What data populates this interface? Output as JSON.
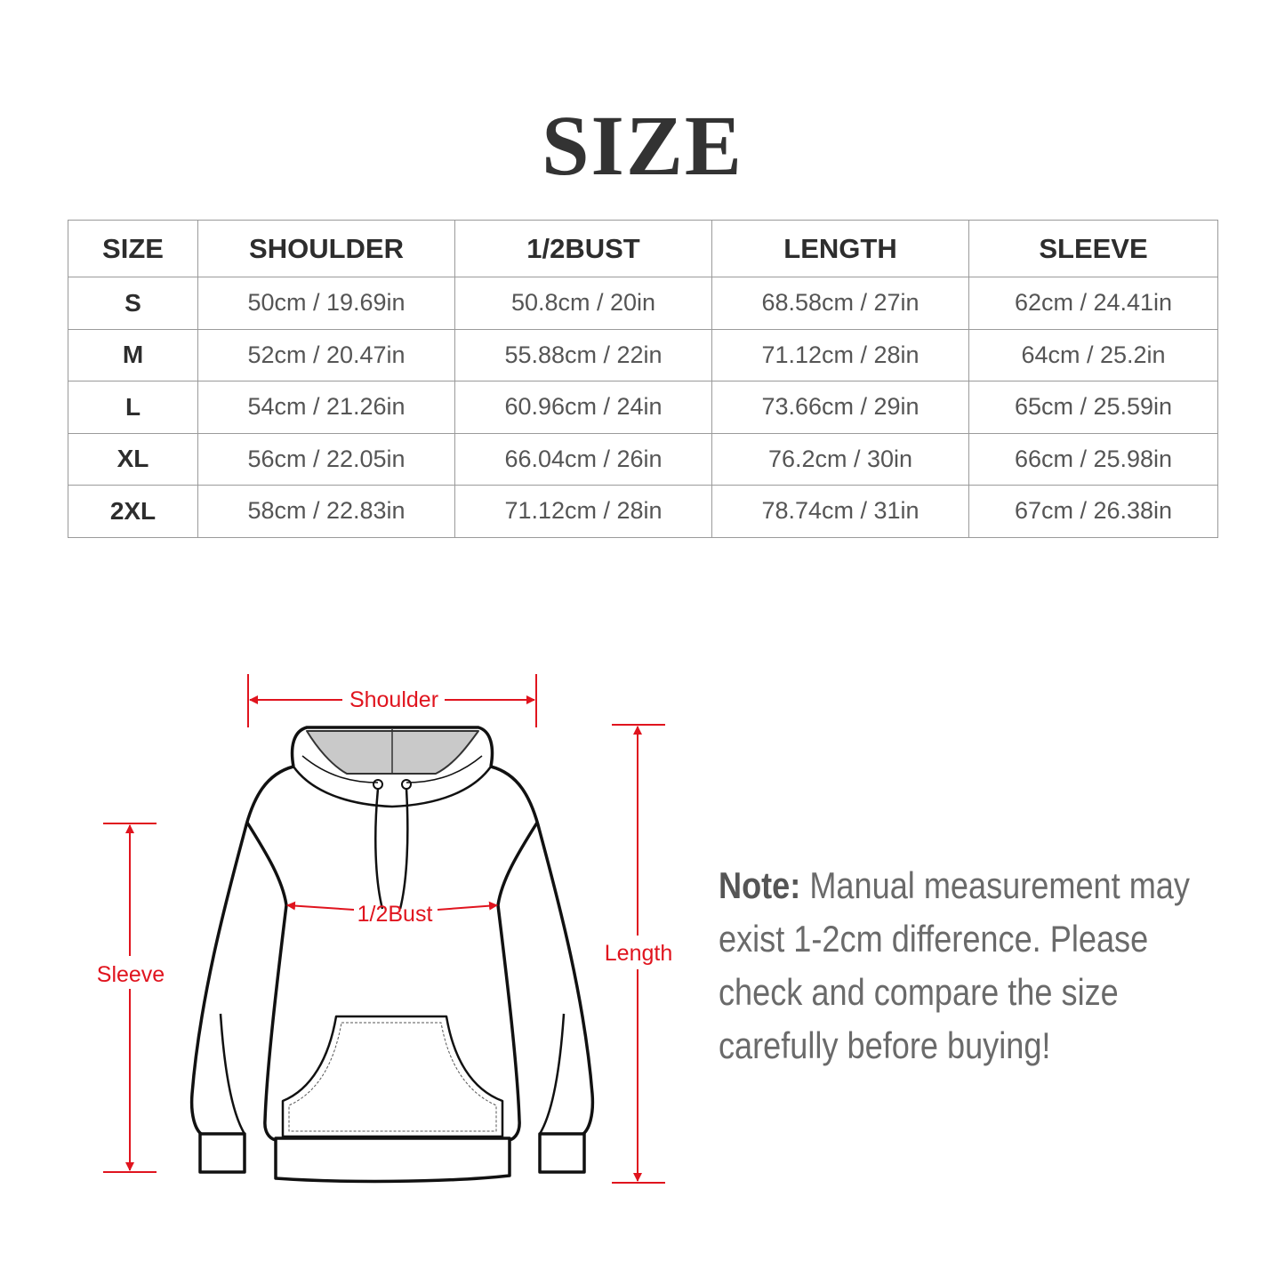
{
  "title": "SIZE",
  "table": {
    "headers": [
      "SIZE",
      "SHOULDER",
      "1/2BUST",
      "LENGTH",
      "SLEEVE"
    ],
    "rows": [
      [
        "S",
        "50cm / 19.69in",
        "50.8cm / 20in",
        "68.58cm / 27in",
        "62cm / 24.41in"
      ],
      [
        "M",
        "52cm / 20.47in",
        "55.88cm / 22in",
        "71.12cm / 28in",
        "64cm / 25.2in"
      ],
      [
        "L",
        "54cm / 21.26in",
        "60.96cm / 24in",
        "73.66cm / 29in",
        "65cm / 25.59in"
      ],
      [
        "XL",
        "56cm / 22.05in",
        "66.04cm / 26in",
        "76.2cm / 30in",
        "66cm / 25.98in"
      ],
      [
        "2XL",
        "58cm / 22.83in",
        "71.12cm / 28in",
        "78.74cm / 31in",
        "67cm / 26.38in"
      ]
    ]
  },
  "diagram": {
    "shoulder": "Shoulder",
    "bust": "1/2Bust",
    "sleeve": "Sleeve",
    "length": "Length",
    "accent_color": "#e0141e"
  },
  "note": {
    "label": "Note:",
    "lines": [
      "Manual measurement may",
      "exist 1-2cm difference. Please",
      "check and compare the size",
      "carefully before buying!"
    ]
  }
}
